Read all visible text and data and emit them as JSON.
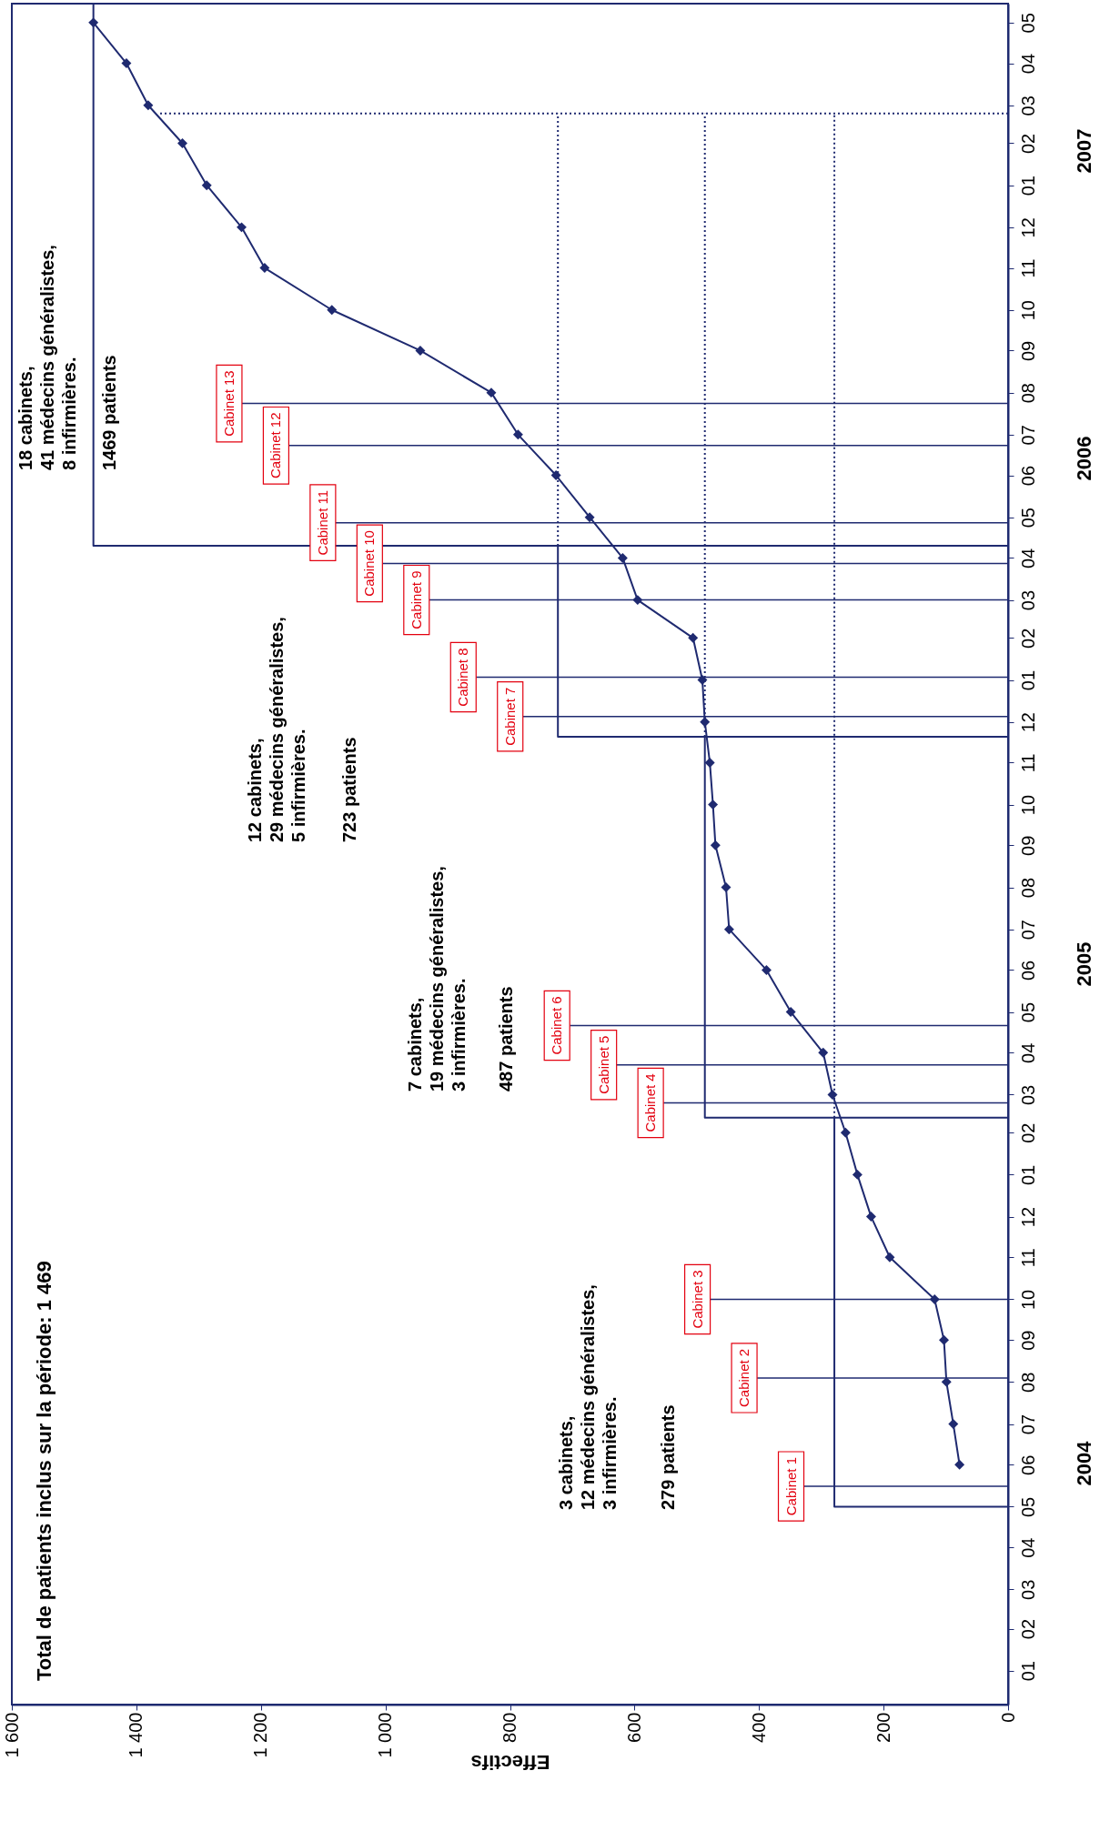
{
  "chart_data": {
    "type": "line",
    "orientation": "horizontal",
    "title": "Total de patients inclus sur la période: 1 469",
    "xlabel": "Effectifs",
    "x": [
      "2004-06",
      "2004-07",
      "2004-08",
      "2004-09",
      "2004-10",
      "2004-11",
      "2004-12",
      "2005-01",
      "2005-02",
      "2005-03",
      "2005-04",
      "2005-05",
      "2005-06",
      "2005-07",
      "2005-08",
      "2005-09",
      "2005-10",
      "2005-11",
      "2005-12",
      "2006-01",
      "2006-02",
      "2006-03",
      "2006-04",
      "2006-05",
      "2006-06",
      "2006-07",
      "2006-08",
      "2006-09",
      "2006-10",
      "2006-11",
      "2006-12",
      "2007-01",
      "2007-02",
      "2007-03",
      "2007-04",
      "2007-05"
    ],
    "series": [
      {
        "color": "#1f2a70",
        "marker": "diamond",
        "values": [
          78,
          88,
          99,
          103,
          118,
          190,
          220,
          242,
          261,
          282,
          297,
          349,
          388,
          448,
          453,
          470,
          474,
          479,
          487,
          491,
          506,
          595,
          619,
          672,
          726,
          787,
          830,
          944,
          1086,
          1194,
          1231,
          1287,
          1326,
          1381,
          1416,
          1469
        ]
      },
      {
        "color": "#1f2a70",
        "x": [
          "2004-05",
          "2004-05",
          "2005-02-12",
          "2005-02-12",
          "2005-02-12",
          "2005-11-20",
          "2005-11-20",
          "2005-11-20",
          "2006-04-10",
          "2006-04-10",
          "2006-04-10",
          "2007-05-15"
        ],
        "values": [
          0,
          279,
          279,
          0,
          487,
          487,
          0,
          723,
          723,
          0,
          1469,
          1469
        ]
      },
      {
        "color": "#1f2a70",
        "line_style": "dotted",
        "x": [
          "2005-02-12",
          "2007-02-23"
        ],
        "values": [
          279,
          279
        ]
      },
      {
        "color": "#1f2a70",
        "line_style": "dotted",
        "x": [
          "2005-11-20",
          "2007-02-23"
        ],
        "values": [
          487,
          487
        ]
      },
      {
        "color": "#1f2a70",
        "line_style": "dotted",
        "x": [
          "2006-04-10",
          "2007-02-23"
        ],
        "values": [
          723,
          723
        ]
      },
      {
        "color": "#1f2a70",
        "line_style": "dotted",
        "x": [
          "2007-02-23",
          "2007-02-23"
        ],
        "values": [
          0,
          1362
        ]
      }
    ],
    "ylim": [
      "2003-12-07",
      "2007-05-15"
    ],
    "yticks": [
      {
        "value": "2004-01",
        "label": "01"
      },
      {
        "value": "2004-02",
        "label": "02"
      },
      {
        "value": "2004-03",
        "label": "03"
      },
      {
        "value": "2004-04",
        "label": "04"
      },
      {
        "value": "2004-05",
        "label": "05"
      },
      {
        "value": "2004-06",
        "label": "06"
      },
      {
        "value": "2004-07",
        "label": "07"
      },
      {
        "value": "2004-08",
        "label": "08"
      },
      {
        "value": "2004-09",
        "label": "09"
      },
      {
        "value": "2004-10",
        "label": "10"
      },
      {
        "value": "2004-11",
        "label": "11"
      },
      {
        "value": "2004-12",
        "label": "12"
      },
      {
        "value": "2005-01",
        "label": "01"
      },
      {
        "value": "2005-02",
        "label": "02"
      },
      {
        "value": "2005-03",
        "label": "03"
      },
      {
        "value": "2005-04",
        "label": "04"
      },
      {
        "value": "2005-05",
        "label": "05"
      },
      {
        "value": "2005-06",
        "label": "06"
      },
      {
        "value": "2005-07",
        "label": "07"
      },
      {
        "value": "2005-08",
        "label": "08"
      },
      {
        "value": "2005-09",
        "label": "09"
      },
      {
        "value": "2005-10",
        "label": "10"
      },
      {
        "value": "2005-11",
        "label": "11"
      },
      {
        "value": "2005-12",
        "label": "12"
      },
      {
        "value": "2006-01",
        "label": "01"
      },
      {
        "value": "2006-02",
        "label": "02"
      },
      {
        "value": "2006-03",
        "label": "03"
      },
      {
        "value": "2006-04",
        "label": "04"
      },
      {
        "value": "2006-05",
        "label": "05"
      },
      {
        "value": "2006-06",
        "label": "06"
      },
      {
        "value": "2006-07",
        "label": "07"
      },
      {
        "value": "2006-08",
        "label": "08"
      },
      {
        "value": "2006-09",
        "label": "09"
      },
      {
        "value": "2006-10",
        "label": "10"
      },
      {
        "value": "2006-11",
        "label": "11"
      },
      {
        "value": "2006-12",
        "label": "12"
      },
      {
        "value": "2007-01",
        "label": "01"
      },
      {
        "value": "2007-02",
        "label": "02"
      },
      {
        "value": "2007-03",
        "label": "03"
      },
      {
        "value": "2007-04",
        "label": "04"
      },
      {
        "value": "2007-05",
        "label": "05"
      }
    ],
    "xlim": [
      1600,
      0
    ],
    "xticks": [
      {
        "value": 1600,
        "label": "1 600"
      },
      {
        "value": 1400,
        "label": "1 400"
      },
      {
        "value": 1200,
        "label": "1 200"
      },
      {
        "value": 1000,
        "label": "1 000"
      },
      800,
      600,
      400,
      200,
      0
    ],
    "ref_lines": [
      {
        "axis": "y",
        "value": "2004-05-16",
        "label": "Cabinet 1",
        "color": "#1f2a70"
      },
      {
        "axis": "y",
        "value": "2004-08-04",
        "label": "Cabinet 2",
        "color": "#1f2a70"
      },
      {
        "axis": "y",
        "value": "2004-10-01",
        "label": "Cabinet 3",
        "color": "#1f2a70"
      },
      {
        "axis": "y",
        "value": "2005-02-23",
        "label": "Cabinet 4",
        "color": "#1f2a70"
      },
      {
        "axis": "y",
        "value": "2005-03-23",
        "label": "Cabinet 5",
        "color": "#1f2a70"
      },
      {
        "axis": "y",
        "value": "2005-04-21",
        "label": "Cabinet 6",
        "color": "#1f2a70"
      },
      {
        "axis": "y",
        "value": "2005-12-05",
        "label": "Cabinet 7",
        "color": "#1f2a70"
      },
      {
        "axis": "y",
        "value": "2006-01-03",
        "label": "Cabinet 8",
        "color": "#1f2a70"
      },
      {
        "axis": "y",
        "value": "2006-03-01",
        "label": "Cabinet 9",
        "color": "#1f2a70"
      },
      {
        "axis": "y",
        "value": "2006-03-28",
        "label": "Cabinet 10",
        "color": "#1f2a70"
      },
      {
        "axis": "y",
        "value": "2006-04-27",
        "label": "Cabinet 11",
        "color": "#1f2a70"
      },
      {
        "axis": "y",
        "value": "2006-06-23",
        "label": "Cabinet 12",
        "color": "#1f2a70"
      },
      {
        "axis": "y",
        "value": "2006-07-24",
        "label": "Cabinet 13",
        "color": "#1f2a70"
      }
    ],
    "annotations": [
      "3 cabinets,\n12 médecins généralistes,\n3 infirmières.",
      "279 patients",
      "7 cabinets,\n19 médecins généralistes,\n3 infirmières.",
      "487 patients",
      "12 cabinets,\n29 médecins généralistes,\n5 infirmières.",
      "723 patients",
      "18 cabinets,\n41 médecins généralistes,\n8 infirmières.",
      "1469 patients",
      "2004",
      "2005",
      "2006",
      "2007"
    ]
  }
}
